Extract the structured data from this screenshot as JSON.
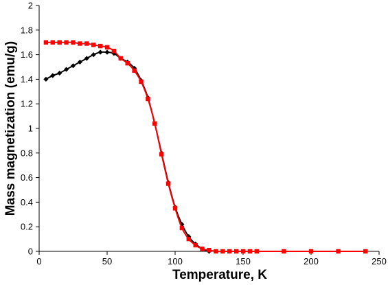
{
  "chart_data": {
    "type": "line",
    "title": "",
    "xlabel": "Temperature, K",
    "ylabel": "Mass magnetization (emu/g)",
    "xlim": [
      0,
      250
    ],
    "ylim": [
      0,
      2
    ],
    "x_ticks": [
      0,
      50,
      100,
      150,
      200,
      250
    ],
    "y_ticks": [
      0,
      0.2,
      0.4,
      0.6,
      0.8,
      1,
      1.2,
      1.4,
      1.6,
      1.8,
      2
    ],
    "x_tick_labels": [
      "0",
      "50",
      "100",
      "150",
      "200",
      "250"
    ],
    "y_tick_labels": [
      "0",
      "0.2",
      "0.4",
      "0.6",
      "0.8",
      "1",
      "1.2",
      "1.4",
      "1.6",
      "1.8",
      "2"
    ],
    "grid": false,
    "legend": "none",
    "series": [
      {
        "color": "#000000",
        "marker": "diamond",
        "x": [
          5,
          10,
          15,
          20,
          25,
          30,
          35,
          40,
          45,
          50,
          55,
          60,
          65,
          70,
          75,
          80,
          85,
          90,
          95,
          100,
          105,
          110,
          115,
          120,
          125
        ],
        "y": [
          1.4,
          1.43,
          1.45,
          1.48,
          1.51,
          1.54,
          1.57,
          1.6,
          1.62,
          1.62,
          1.61,
          1.57,
          1.54,
          1.49,
          1.39,
          1.25,
          1.04,
          0.8,
          0.56,
          0.36,
          0.22,
          0.12,
          0.06,
          0.02,
          0.0
        ]
      },
      {
        "color": "#ff0000",
        "marker": "square",
        "x": [
          5,
          10,
          15,
          20,
          25,
          30,
          35,
          40,
          45,
          50,
          55,
          60,
          65,
          70,
          75,
          80,
          85,
          90,
          95,
          100,
          105,
          110,
          115,
          120,
          125,
          130,
          135,
          140,
          145,
          150,
          155,
          160,
          180,
          200,
          220,
          240
        ],
        "y": [
          1.7,
          1.7,
          1.7,
          1.7,
          1.7,
          1.69,
          1.69,
          1.68,
          1.67,
          1.66,
          1.63,
          1.57,
          1.53,
          1.47,
          1.38,
          1.24,
          1.04,
          0.79,
          0.55,
          0.35,
          0.19,
          0.1,
          0.05,
          0.02,
          0.01,
          0.0,
          0.0,
          0.0,
          0.0,
          0.0,
          0.0,
          0.0,
          0.0,
          0.0,
          0.0,
          0.0
        ]
      }
    ]
  }
}
